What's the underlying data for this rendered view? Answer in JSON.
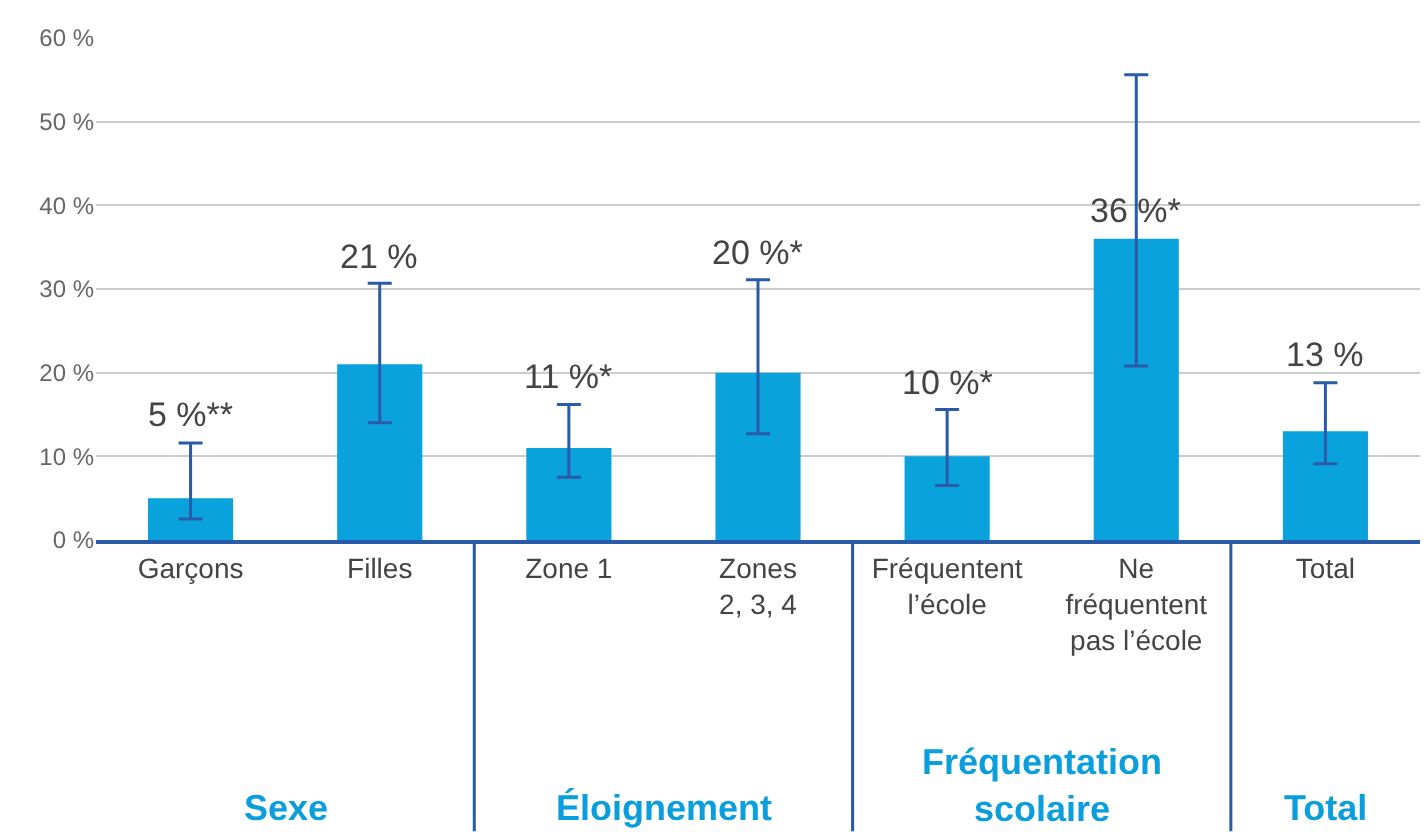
{
  "chart_data": {
    "type": "bar",
    "categories": [
      "Garçons",
      "Filles",
      "Zone 1",
      "Zones\n2, 3, 4",
      "Fréquentent\nl’école",
      "Ne\nfréquentent\npas l’école",
      "Total"
    ],
    "values": [
      5,
      21,
      11,
      20,
      10,
      36,
      13
    ],
    "value_labels": [
      "5 %**",
      "21 %",
      "11 %*",
      "20 %*",
      "10 %*",
      "36 %*",
      "13 %"
    ],
    "errors": [
      [
        2.5,
        11.6
      ],
      [
        14,
        30.7
      ],
      [
        7.5,
        16.2
      ],
      [
        12.7,
        31.1
      ],
      [
        6.5,
        15.6
      ],
      [
        20.8,
        55.6
      ],
      [
        9.1,
        18.8
      ]
    ],
    "color": "#0aa2dc",
    "ylim": [
      0,
      60
    ],
    "yticks": [
      {
        "value": 0,
        "label": "0 %"
      },
      {
        "value": 10,
        "label": "10 %"
      },
      {
        "value": 20,
        "label": "20 %"
      },
      {
        "value": 30,
        "label": "30 %"
      },
      {
        "value": 40,
        "label": "40 %"
      },
      {
        "value": 50,
        "label": "50 %"
      },
      {
        "value": 60,
        "label": "60 %"
      }
    ],
    "grid": "y",
    "annotations": [
      "Sexe",
      "Éloignement",
      "Fréquentation\nscolaire",
      "Total"
    ]
  }
}
